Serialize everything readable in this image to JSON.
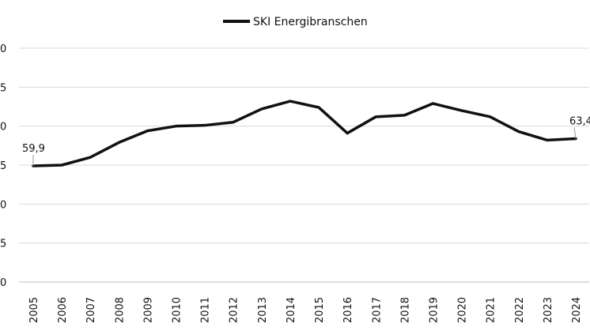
{
  "chart_data": {
    "type": "line",
    "title": "",
    "xlabel": "",
    "ylabel": "",
    "legend": {
      "entries": [
        "SKI Energibranschen"
      ],
      "placement": "top-center"
    },
    "x": [
      "2005",
      "2006",
      "2007",
      "2008",
      "2009",
      "2010",
      "2011",
      "2012",
      "2013",
      "2014",
      "2015",
      "2016",
      "2017",
      "2018",
      "2019",
      "2020",
      "2021",
      "2022",
      "2023",
      "2024"
    ],
    "series": [
      {
        "name": "SKI Energibranschen",
        "values": [
          59.9,
          60.0,
          61.0,
          62.9,
          64.4,
          65.0,
          65.1,
          65.5,
          67.2,
          68.2,
          67.4,
          64.1,
          66.2,
          66.4,
          67.9,
          67.0,
          66.2,
          64.3,
          63.2,
          63.4
        ],
        "color": "#111111"
      }
    ],
    "ylim": [
      45,
      75
    ],
    "yticks": [
      "0",
      "5",
      "0",
      "5",
      "0",
      "5",
      "0"
    ],
    "annotations": [
      {
        "index": 0,
        "text": "59,9"
      },
      {
        "index": 19,
        "text": "63,4"
      }
    ],
    "grid": true
  }
}
